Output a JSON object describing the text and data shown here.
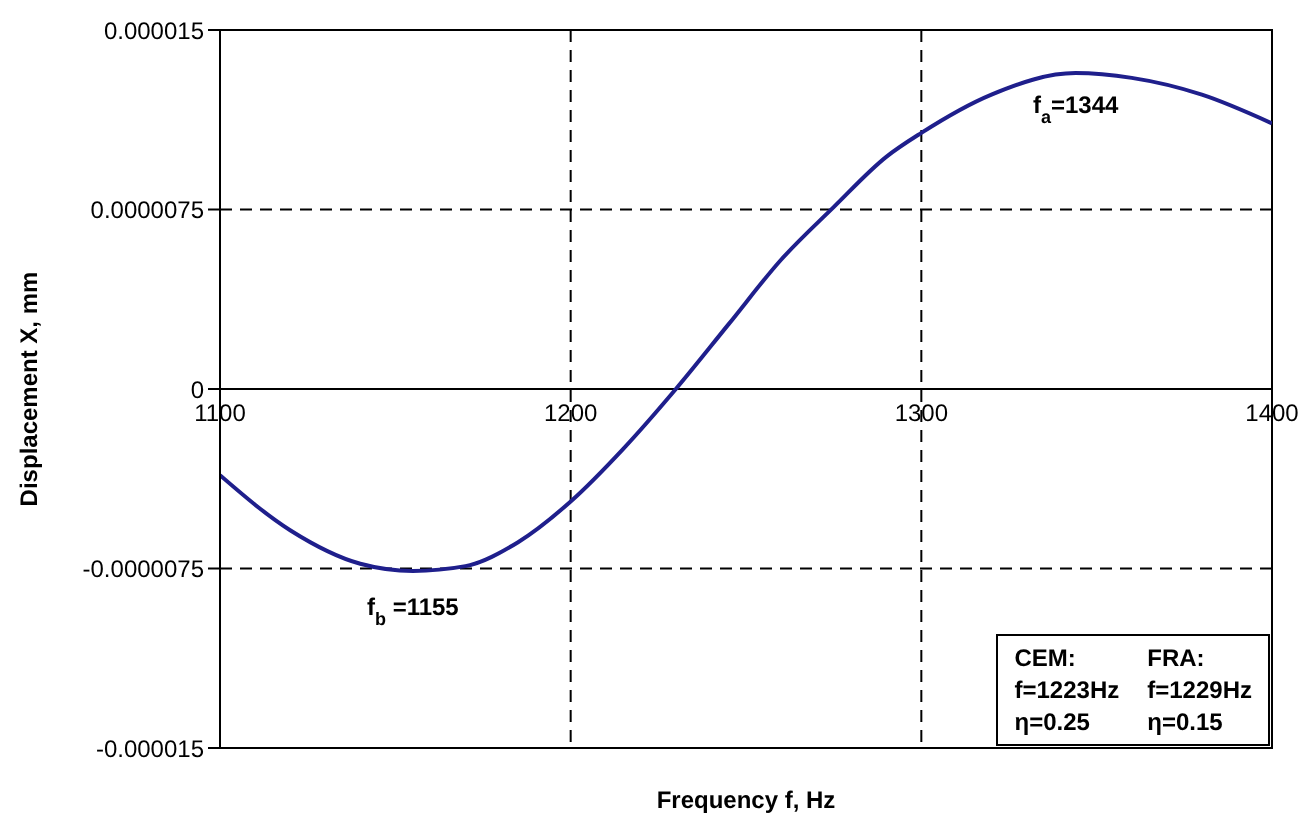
{
  "chart_data": {
    "type": "line",
    "xlabel": "Frequency  f, Hz",
    "ylabel": "Displacement   X, mm",
    "x": [
      1100,
      1120,
      1140,
      1155,
      1170,
      1185,
      1200,
      1215,
      1230,
      1245,
      1260,
      1275,
      1290,
      1300,
      1320,
      1344,
      1360,
      1380,
      1400
    ],
    "series": [
      {
        "color": "#1f1f8c",
        "values": [
          -3.6e-06,
          -5.9e-06,
          -7.3e-06,
          -7.6e-06,
          -7.4e-06,
          -6.4e-06,
          -4.7e-06,
          -2.5e-06,
          0,
          2.7e-06,
          5.4e-06,
          7.6e-06,
          9.7e-06,
          1.07e-05,
          1.23e-05,
          1.32e-05,
          1.3e-05,
          1.23e-05,
          1.11e-05
        ]
      }
    ],
    "xlim": [
      1100,
      1400
    ],
    "xticks": [
      1100,
      1200,
      1300,
      1400
    ],
    "ylim": [
      -1.5e-05,
      1.5e-05
    ],
    "yticks": [
      {
        "value": -1.5e-05,
        "label": "-0.000015"
      },
      {
        "value": -7.5e-06,
        "label": "-0.0000075"
      },
      0,
      {
        "value": 7.5e-06,
        "label": "0.0000075"
      },
      {
        "value": 1.5e-05,
        "label": "0.000015"
      }
    ],
    "grid": true,
    "marker": "none",
    "line_style": "solid",
    "annotations": [
      {
        "text": "f$_{b}$ =1155",
        "x": 1155,
        "y": -7.6e-06
      },
      {
        "text": "f$_{a}$=1344",
        "x": 1344,
        "y": 1.32e-05
      },
      "CEM:",
      "FRA:",
      "f=1223Hz",
      "f=1229Hz",
      "η=0.25",
      "η=0.15"
    ]
  }
}
